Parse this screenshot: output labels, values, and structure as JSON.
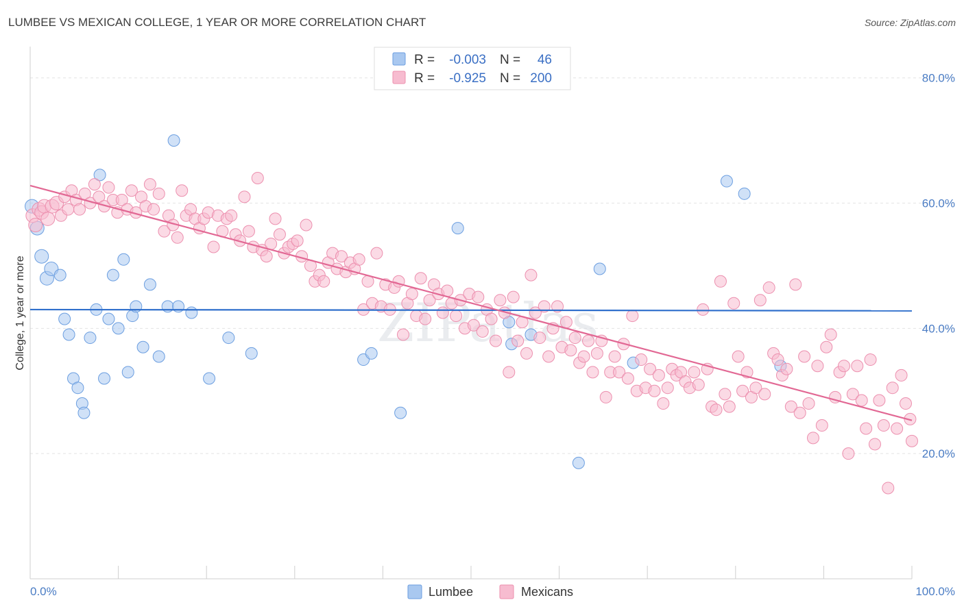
{
  "header": {
    "title": "LUMBEE VS MEXICAN COLLEGE, 1 YEAR OR MORE CORRELATION CHART",
    "source": "Source: ZipAtlas.com"
  },
  "watermark": "ZIPatlas",
  "legend": {
    "rows": [
      {
        "r_label": "R =",
        "r_value": "-0.003",
        "n_label": "N =",
        "n_value": "46",
        "color": "#a9c8f0",
        "stroke": "#6b9ee0"
      },
      {
        "r_label": "R =",
        "r_value": "-0.925",
        "n_label": "N =",
        "n_value": "200",
        "color": "#f7bcd0",
        "stroke": "#ec8fae"
      }
    ]
  },
  "bottom_legend": {
    "items": [
      {
        "label": "Lumbee",
        "color": "#a9c8f0",
        "stroke": "#6b9ee0"
      },
      {
        "label": "Mexicans",
        "color": "#f7bcd0",
        "stroke": "#ec8fae"
      }
    ]
  },
  "chart_data": {
    "type": "scatter",
    "ylabel": "College, 1 year or more",
    "xlabel": "",
    "xlim": [
      0,
      100
    ],
    "ylim": [
      0,
      85
    ],
    "x_ticks": [
      "0.0%",
      "100.0%"
    ],
    "y_ticks": [
      {
        "value": 20,
        "label": "20.0%"
      },
      {
        "value": 40,
        "label": "40.0%"
      },
      {
        "value": 60,
        "label": "60.0%"
      },
      {
        "value": 80,
        "label": "80.0%"
      }
    ],
    "grid": true,
    "legend_position": "top-center",
    "series": [
      {
        "name": "Lumbee",
        "color": "#a9c8f0",
        "stroke": "#6b9ee0",
        "line_color": "#2f6fcc",
        "trend": {
          "x": [
            0,
            100
          ],
          "y": [
            43.0,
            42.8
          ]
        },
        "points": [
          [
            0.2,
            59.5
          ],
          [
            0.8,
            56.0
          ],
          [
            1.3,
            51.5
          ],
          [
            1.9,
            48.0
          ],
          [
            2.4,
            49.5
          ],
          [
            3.4,
            48.5
          ],
          [
            3.9,
            41.5
          ],
          [
            4.4,
            39.0
          ],
          [
            4.9,
            32.0
          ],
          [
            5.4,
            30.5
          ],
          [
            5.9,
            28.0
          ],
          [
            6.1,
            26.5
          ],
          [
            6.8,
            38.5
          ],
          [
            7.5,
            43.0
          ],
          [
            7.9,
            64.5
          ],
          [
            8.4,
            32.0
          ],
          [
            8.9,
            41.5
          ],
          [
            9.4,
            48.5
          ],
          [
            10.0,
            40.0
          ],
          [
            10.6,
            51.0
          ],
          [
            11.1,
            33.0
          ],
          [
            11.6,
            42.0
          ],
          [
            12.0,
            43.5
          ],
          [
            12.8,
            37.0
          ],
          [
            13.6,
            47.0
          ],
          [
            14.6,
            35.5
          ],
          [
            15.6,
            43.5
          ],
          [
            16.3,
            70.0
          ],
          [
            16.8,
            43.5
          ],
          [
            18.3,
            42.5
          ],
          [
            20.3,
            32.0
          ],
          [
            22.5,
            38.5
          ],
          [
            25.1,
            36.0
          ],
          [
            37.8,
            35.0
          ],
          [
            38.7,
            36.0
          ],
          [
            42.0,
            26.5
          ],
          [
            48.5,
            56.0
          ],
          [
            54.3,
            41.0
          ],
          [
            54.6,
            37.5
          ],
          [
            56.8,
            39.0
          ],
          [
            62.2,
            18.5
          ],
          [
            64.6,
            49.5
          ],
          [
            68.4,
            34.5
          ],
          [
            79.0,
            63.5
          ],
          [
            81.0,
            61.5
          ],
          [
            85.1,
            34.0
          ]
        ]
      },
      {
        "name": "Mexicans",
        "color": "#f7bcd0",
        "stroke": "#ec8fae",
        "line_color": "#e26894",
        "trend": {
          "x": [
            0,
            100
          ],
          "y": [
            62.8,
            25.3
          ]
        },
        "points": [
          [
            0.3,
            58.0
          ],
          [
            0.6,
            56.5
          ],
          [
            1.0,
            59.0
          ],
          [
            1.3,
            58.5
          ],
          [
            1.6,
            59.5
          ],
          [
            2.0,
            57.5
          ],
          [
            2.5,
            59.5
          ],
          [
            3.0,
            60.0
          ],
          [
            3.5,
            58.0
          ],
          [
            3.9,
            61.0
          ],
          [
            4.3,
            59.0
          ],
          [
            4.7,
            62.0
          ],
          [
            5.2,
            60.5
          ],
          [
            5.6,
            59.0
          ],
          [
            6.2,
            61.5
          ],
          [
            6.8,
            60.0
          ],
          [
            7.3,
            63.0
          ],
          [
            7.8,
            61.0
          ],
          [
            8.4,
            59.5
          ],
          [
            8.9,
            62.5
          ],
          [
            9.4,
            60.5
          ],
          [
            9.9,
            58.5
          ],
          [
            10.4,
            60.5
          ],
          [
            11.0,
            59.0
          ],
          [
            11.5,
            62.0
          ],
          [
            12.0,
            58.5
          ],
          [
            12.6,
            61.0
          ],
          [
            13.1,
            59.5
          ],
          [
            13.6,
            63.0
          ],
          [
            14.0,
            59.0
          ],
          [
            14.6,
            61.5
          ],
          [
            15.2,
            55.5
          ],
          [
            15.7,
            58.0
          ],
          [
            16.2,
            56.5
          ],
          [
            16.7,
            54.5
          ],
          [
            17.2,
            62.0
          ],
          [
            17.7,
            58.0
          ],
          [
            18.2,
            59.0
          ],
          [
            18.7,
            57.5
          ],
          [
            19.2,
            56.0
          ],
          [
            19.7,
            57.5
          ],
          [
            20.2,
            58.5
          ],
          [
            20.8,
            53.0
          ],
          [
            21.3,
            58.0
          ],
          [
            21.8,
            55.5
          ],
          [
            22.3,
            57.5
          ],
          [
            22.8,
            58.0
          ],
          [
            23.3,
            55.0
          ],
          [
            23.8,
            54.0
          ],
          [
            24.3,
            61.0
          ],
          [
            24.8,
            55.5
          ],
          [
            25.3,
            53.0
          ],
          [
            25.8,
            64.0
          ],
          [
            26.3,
            52.5
          ],
          [
            26.8,
            51.5
          ],
          [
            27.3,
            53.5
          ],
          [
            27.8,
            57.5
          ],
          [
            28.3,
            55.0
          ],
          [
            28.8,
            52.0
          ],
          [
            29.3,
            53.0
          ],
          [
            29.8,
            53.5
          ],
          [
            30.3,
            54.0
          ],
          [
            30.8,
            51.5
          ],
          [
            31.3,
            56.5
          ],
          [
            31.8,
            50.0
          ],
          [
            32.3,
            47.5
          ],
          [
            32.8,
            48.5
          ],
          [
            33.3,
            47.5
          ],
          [
            33.8,
            50.5
          ],
          [
            34.3,
            52.0
          ],
          [
            34.8,
            49.5
          ],
          [
            35.3,
            51.5
          ],
          [
            35.8,
            49.0
          ],
          [
            36.3,
            50.5
          ],
          [
            36.8,
            49.5
          ],
          [
            37.3,
            51.0
          ],
          [
            37.8,
            43.0
          ],
          [
            38.3,
            47.5
          ],
          [
            38.8,
            44.0
          ],
          [
            39.3,
            52.0
          ],
          [
            39.8,
            43.5
          ],
          [
            40.3,
            47.0
          ],
          [
            40.8,
            43.0
          ],
          [
            41.3,
            46.5
          ],
          [
            41.8,
            47.5
          ],
          [
            42.3,
            39.0
          ],
          [
            42.8,
            44.0
          ],
          [
            43.3,
            45.5
          ],
          [
            43.8,
            42.0
          ],
          [
            44.3,
            48.0
          ],
          [
            44.8,
            41.5
          ],
          [
            45.3,
            44.5
          ],
          [
            45.8,
            47.0
          ],
          [
            46.3,
            45.5
          ],
          [
            46.8,
            42.5
          ],
          [
            47.3,
            46.0
          ],
          [
            47.8,
            44.0
          ],
          [
            48.3,
            42.0
          ],
          [
            48.8,
            44.5
          ],
          [
            49.3,
            40.0
          ],
          [
            49.8,
            45.5
          ],
          [
            50.3,
            40.5
          ],
          [
            50.8,
            45.0
          ],
          [
            51.3,
            39.5
          ],
          [
            51.8,
            43.0
          ],
          [
            52.3,
            41.5
          ],
          [
            52.8,
            38.0
          ],
          [
            53.3,
            44.5
          ],
          [
            53.8,
            42.5
          ],
          [
            54.3,
            33.0
          ],
          [
            54.8,
            45.0
          ],
          [
            55.3,
            38.0
          ],
          [
            55.8,
            41.0
          ],
          [
            56.3,
            36.0
          ],
          [
            56.8,
            48.5
          ],
          [
            57.3,
            42.5
          ],
          [
            57.8,
            38.5
          ],
          [
            58.3,
            43.5
          ],
          [
            58.8,
            35.5
          ],
          [
            59.3,
            40.0
          ],
          [
            59.8,
            43.5
          ],
          [
            60.3,
            37.0
          ],
          [
            60.8,
            41.0
          ],
          [
            61.3,
            36.5
          ],
          [
            61.8,
            38.5
          ],
          [
            62.3,
            34.5
          ],
          [
            62.8,
            35.5
          ],
          [
            63.3,
            38.0
          ],
          [
            63.8,
            33.0
          ],
          [
            64.3,
            36.0
          ],
          [
            64.8,
            38.0
          ],
          [
            65.3,
            29.0
          ],
          [
            65.8,
            33.0
          ],
          [
            66.3,
            35.5
          ],
          [
            66.8,
            33.0
          ],
          [
            67.3,
            37.5
          ],
          [
            67.8,
            32.0
          ],
          [
            68.3,
            42.0
          ],
          [
            68.8,
            30.0
          ],
          [
            69.3,
            35.0
          ],
          [
            69.8,
            30.5
          ],
          [
            70.3,
            33.5
          ],
          [
            70.8,
            30.0
          ],
          [
            71.3,
            32.5
          ],
          [
            71.8,
            28.0
          ],
          [
            72.3,
            30.5
          ],
          [
            72.8,
            33.5
          ],
          [
            73.3,
            32.5
          ],
          [
            73.8,
            33.0
          ],
          [
            74.3,
            31.5
          ],
          [
            74.8,
            30.5
          ],
          [
            75.3,
            33.0
          ],
          [
            75.8,
            31.0
          ],
          [
            76.3,
            43.0
          ],
          [
            76.8,
            33.5
          ],
          [
            77.3,
            27.5
          ],
          [
            77.8,
            27.0
          ],
          [
            78.3,
            47.5
          ],
          [
            78.8,
            29.5
          ],
          [
            79.3,
            27.5
          ],
          [
            79.8,
            44.0
          ],
          [
            80.3,
            35.5
          ],
          [
            80.8,
            30.0
          ],
          [
            81.3,
            33.0
          ],
          [
            81.8,
            29.0
          ],
          [
            82.3,
            30.5
          ],
          [
            82.8,
            44.5
          ],
          [
            83.3,
            29.5
          ],
          [
            83.8,
            46.5
          ],
          [
            84.3,
            36.0
          ],
          [
            84.8,
            35.0
          ],
          [
            85.3,
            32.5
          ],
          [
            85.8,
            33.5
          ],
          [
            86.3,
            27.5
          ],
          [
            86.8,
            47.0
          ],
          [
            87.3,
            26.5
          ],
          [
            87.8,
            35.5
          ],
          [
            88.3,
            28.0
          ],
          [
            88.8,
            22.5
          ],
          [
            89.3,
            34.0
          ],
          [
            89.8,
            24.5
          ],
          [
            90.3,
            37.0
          ],
          [
            90.8,
            39.0
          ],
          [
            91.3,
            29.0
          ],
          [
            91.8,
            33.0
          ],
          [
            92.3,
            34.0
          ],
          [
            92.8,
            20.0
          ],
          [
            93.3,
            29.5
          ],
          [
            93.8,
            34.0
          ],
          [
            94.3,
            28.5
          ],
          [
            94.8,
            24.0
          ],
          [
            95.3,
            35.0
          ],
          [
            95.8,
            21.5
          ],
          [
            96.3,
            28.5
          ],
          [
            96.8,
            24.5
          ],
          [
            97.3,
            14.5
          ],
          [
            97.8,
            30.5
          ],
          [
            98.3,
            24.0
          ],
          [
            98.8,
            32.5
          ],
          [
            99.3,
            28.0
          ],
          [
            99.8,
            25.5
          ],
          [
            100.0,
            22.0
          ]
        ]
      }
    ]
  }
}
